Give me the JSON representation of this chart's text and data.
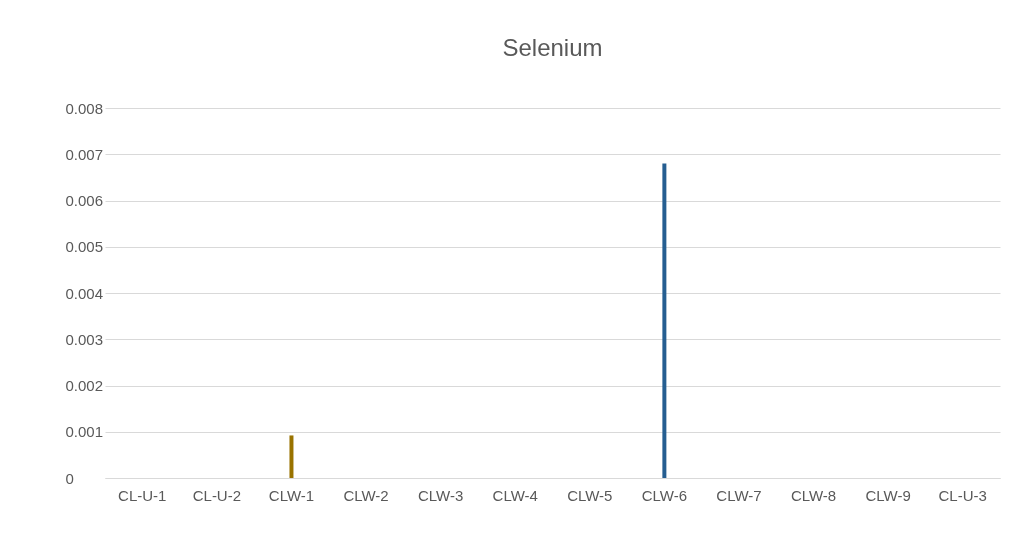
{
  "chart_data": {
    "type": "bar",
    "title": "Selenium",
    "categories": [
      "CL-U-1",
      "CL-U-2",
      "CLW-1",
      "CLW-2",
      "CLW-3",
      "CLW-4",
      "CLW-5",
      "CLW-6",
      "CLW-7",
      "CLW-8",
      "CLW-9",
      "CL-U-3"
    ],
    "values": [
      null,
      null,
      0.00092,
      null,
      null,
      null,
      null,
      0.0068,
      null,
      null,
      null,
      null
    ],
    "colors": [
      "#997300",
      "#997300",
      "#997300",
      "#255e91",
      "#255e91",
      "#255e91",
      "#255e91",
      "#255e91",
      "#255e91",
      "#255e91",
      "#255e91",
      "#255e91"
    ],
    "ylim": [
      0,
      0.008
    ],
    "yticks": [
      0,
      0.001,
      0.002,
      0.003,
      0.004,
      0.005,
      0.006,
      0.007,
      0.008
    ],
    "grid": "y"
  }
}
